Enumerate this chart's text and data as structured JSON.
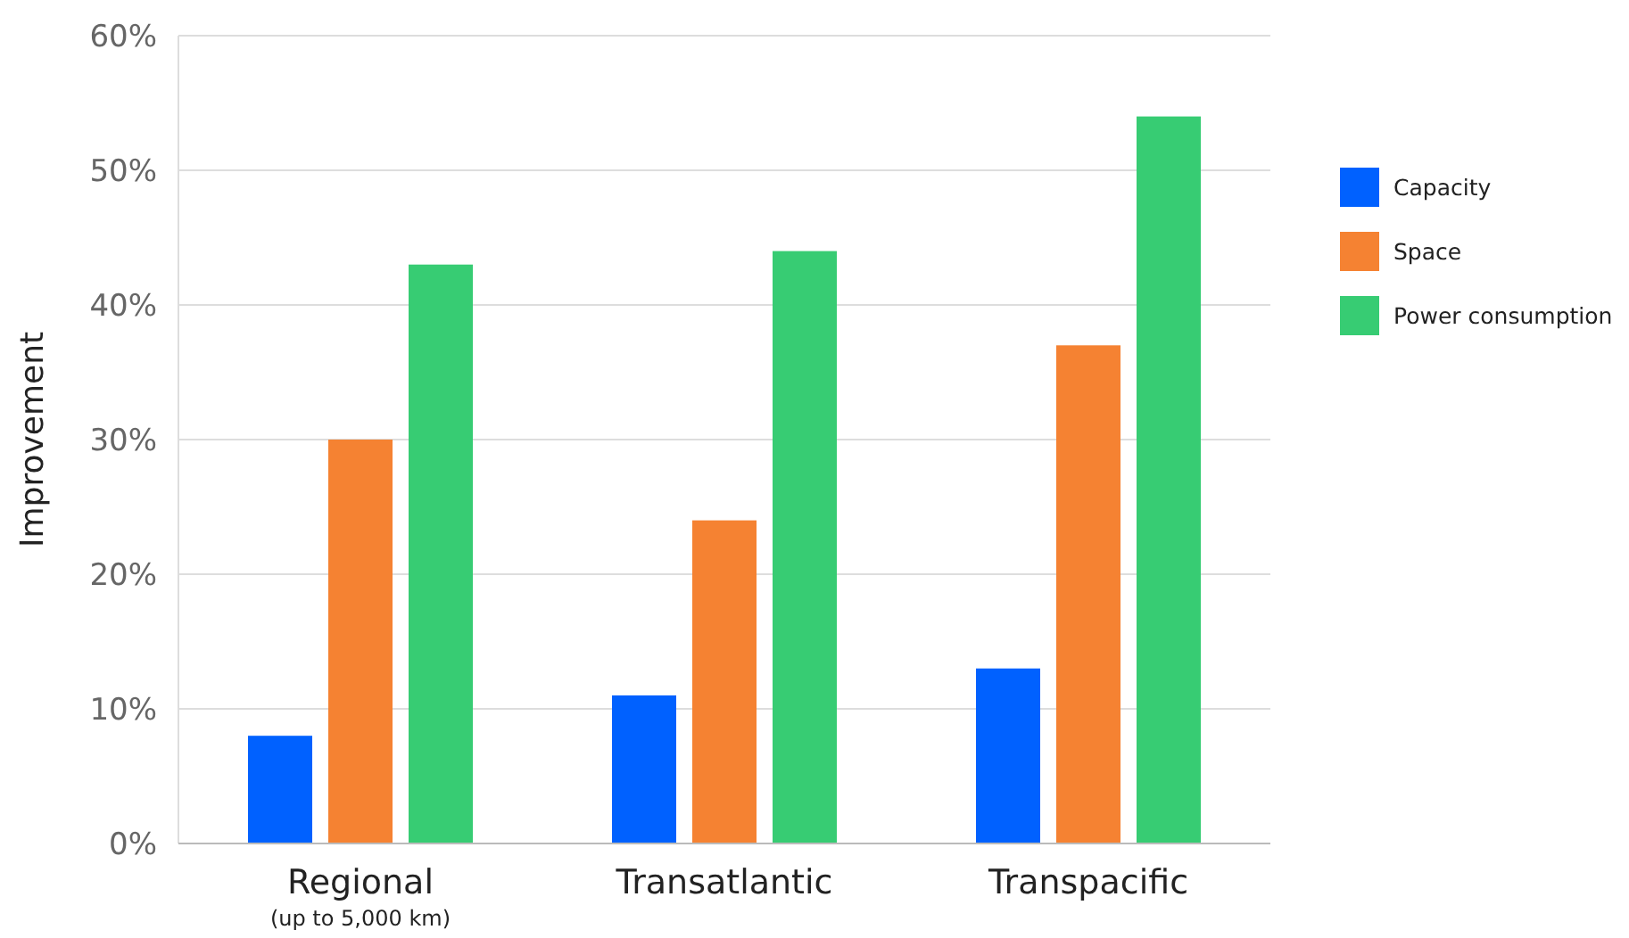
{
  "chart_data": {
    "type": "bar",
    "ylabel": "Improvement",
    "categories": [
      "Regional\n(up to 5,000 km)",
      "Transatlantic",
      "Transpacific"
    ],
    "series": [
      {
        "name": "Capacity",
        "color": "#0061ff",
        "values": [
          8,
          11,
          13
        ]
      },
      {
        "name": "Space",
        "color": "#f58232",
        "values": [
          30,
          24,
          37
        ]
      },
      {
        "name": "Power consumption",
        "color": "#37cc73",
        "values": [
          43,
          44,
          54
        ]
      }
    ],
    "ylim": [
      0,
      60
    ],
    "yticks": [
      {
        "value": 0,
        "label": "0%"
      },
      {
        "value": 10,
        "label": "10%"
      },
      {
        "value": 20,
        "label": "20%"
      },
      {
        "value": 30,
        "label": "30%"
      },
      {
        "value": 40,
        "label": "40%"
      },
      {
        "value": 50,
        "label": "50%"
      },
      {
        "value": 60,
        "label": "60%"
      }
    ],
    "grid": "y",
    "legend": "right"
  }
}
